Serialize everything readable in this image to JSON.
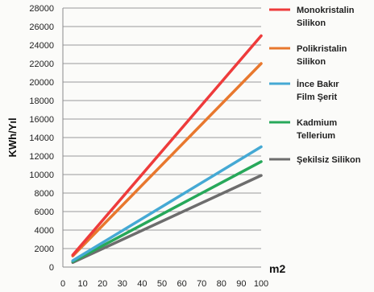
{
  "chart_data": {
    "type": "line",
    "title": "",
    "xlabel": "m2",
    "ylabel": "KWh/Yıl",
    "x": [
      5,
      100
    ],
    "xlim": [
      0,
      100
    ],
    "ylim": [
      0,
      28000
    ],
    "x_ticks": [
      0,
      10,
      20,
      30,
      40,
      50,
      60,
      70,
      80,
      90,
      100
    ],
    "y_ticks": [
      0,
      2000,
      4000,
      6000,
      8000,
      10000,
      12000,
      14000,
      16000,
      18000,
      20000,
      22000,
      24000,
      26000,
      28000
    ],
    "grid": true,
    "legend_position": "right",
    "series": [
      {
        "name": "Monokristalin Silikon",
        "values": [
          1300,
          25000
        ],
        "color": "#ee3b3b"
      },
      {
        "name": "Polikristalin Silikon",
        "values": [
          1200,
          22000
        ],
        "color": "#e8782e"
      },
      {
        "name": "İnce Bakır Film Şerit",
        "values": [
          700,
          13000
        ],
        "color": "#45a9d4"
      },
      {
        "name": "Kadmium Tellerium",
        "values": [
          600,
          11400
        ],
        "color": "#27a85a"
      },
      {
        "name": "Şekilsiz Silikon",
        "values": [
          500,
          9900
        ],
        "color": "#6d6d6d"
      }
    ]
  }
}
